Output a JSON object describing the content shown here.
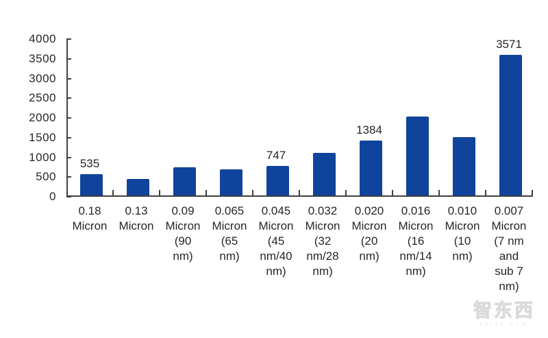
{
  "chart_data": {
    "type": "bar",
    "title": "",
    "xlabel": "",
    "ylabel": "",
    "categories": [
      "0.18 Micron",
      "0.13 Micron",
      "0.09 Micron (90 nm)",
      "0.065 Micron (65 nm)",
      "0.045 Micron (45 nm/40 nm)",
      "0.032 Micron (32 nm/28 nm)",
      "0.020 Micron (20 nm)",
      "0.016 Micron (16 nm/14 nm)",
      "0.010 Micron (10 nm)",
      "0.007 Micron (7 nm and sub 7 nm)"
    ],
    "tick_label_lines": [
      [
        "0.18",
        "Micron"
      ],
      [
        "0.13",
        "Micron"
      ],
      [
        "0.09",
        "Micron",
        "(90",
        "nm)"
      ],
      [
        "0.065",
        "Micron",
        "(65",
        "nm)"
      ],
      [
        "0.045",
        "Micron",
        "(45",
        "nm/40",
        "nm)"
      ],
      [
        "0.032",
        "Micron",
        "(32",
        "nm/28",
        "nm)"
      ],
      [
        "0.020",
        "Micron",
        "(20",
        "nm)"
      ],
      [
        "0.016",
        "Micron",
        "(16",
        "nm/14",
        "nm)"
      ],
      [
        "0.010",
        "Micron",
        "(10",
        "nm)"
      ],
      [
        "0.007",
        "Micron",
        "(7 nm",
        "and",
        "sub 7",
        "nm)"
      ]
    ],
    "values": [
      535,
      410,
      720,
      660,
      747,
      1080,
      1384,
      2000,
      1480,
      3571
    ],
    "data_labels": [
      "535",
      null,
      null,
      null,
      "747",
      null,
      "1384",
      null,
      null,
      "3571"
    ],
    "ylim": [
      0,
      4000
    ],
    "yticks": [
      0,
      500,
      1000,
      1500,
      2000,
      2500,
      3000,
      3500,
      4000
    ],
    "grid": false,
    "legend": "none",
    "bar_color": "#10439C",
    "axis_color": "#3F3F3F",
    "text_color": "#262626"
  },
  "watermark": {
    "logo_text": "智东西",
    "site_text": "zhidx.com"
  }
}
